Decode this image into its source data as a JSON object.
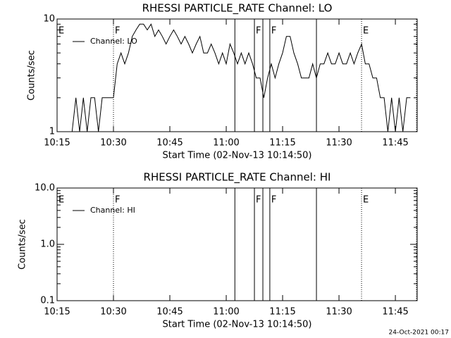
{
  "chart_data": [
    {
      "type": "line",
      "title": "RHESSI PARTICLE_RATE Channel: LO",
      "xlabel": "Start Time (02-Nov-13 10:14:50)",
      "ylabel": "Counts/sec",
      "log_y": true,
      "ylim": [
        1,
        10
      ],
      "yticks": [
        1,
        10
      ],
      "yminorticks": [
        2,
        3,
        4,
        5,
        6,
        7,
        8,
        9
      ],
      "xlim": [
        615,
        710.8
      ],
      "xticks": [
        {
          "value": 615,
          "label": "10:15"
        },
        {
          "value": 630,
          "label": "10:30"
        },
        {
          "value": 645,
          "label": "10:45"
        },
        {
          "value": 660,
          "label": "11:00"
        },
        {
          "value": 675,
          "label": "11:15"
        },
        {
          "value": 690,
          "label": "11:30"
        },
        {
          "value": 705,
          "label": "11:45"
        }
      ],
      "flags": [
        {
          "x": 615,
          "label": "E",
          "style": "dotted"
        },
        {
          "x": 630,
          "label": "F",
          "style": "dotted"
        },
        {
          "x": 662.3,
          "style": "solid"
        },
        {
          "x": 667.5,
          "label": "F",
          "style": "solid"
        },
        {
          "x": 669.75,
          "style": "solid"
        },
        {
          "x": 671.6,
          "label": "F",
          "style": "solid"
        },
        {
          "x": 684,
          "style": "solid"
        },
        {
          "x": 696,
          "label": "E",
          "style": "dotted"
        },
        {
          "x": 710.6,
          "style": "dotted"
        }
      ],
      "series": [
        {
          "name": "Channel: LO",
          "color": "#000000",
          "x": [
            619,
            620,
            621,
            622,
            623,
            624,
            625,
            626,
            627,
            628,
            629,
            630,
            631,
            632,
            633,
            634,
            635,
            636,
            637,
            638,
            639,
            640,
            641,
            642,
            643,
            644,
            645,
            646,
            647,
            648,
            649,
            650,
            651,
            652,
            653,
            654,
            655,
            656,
            657,
            658,
            659,
            660,
            661,
            662,
            663,
            664,
            665,
            666,
            667,
            668,
            669,
            670,
            671,
            672,
            673,
            674,
            675,
            676,
            677,
            678,
            679,
            680,
            681,
            682,
            683,
            684,
            685,
            686,
            687,
            688,
            689,
            690,
            691,
            692,
            693,
            694,
            695,
            696,
            697,
            698,
            699,
            700,
            701,
            702,
            703,
            704,
            705,
            706,
            707,
            708,
            709
          ],
          "values": [
            1,
            2,
            1,
            2,
            1,
            2,
            2,
            1,
            2,
            2,
            2,
            2,
            4,
            5,
            4,
            5,
            7,
            8,
            9,
            9,
            8,
            9,
            7,
            8,
            7,
            6,
            7,
            8,
            7,
            6,
            7,
            6,
            5,
            6,
            7,
            5,
            5,
            6,
            5,
            4,
            5,
            4,
            6,
            5,
            4,
            5,
            4,
            5,
            4,
            3,
            3,
            2,
            3,
            4,
            3,
            4,
            5,
            7,
            7,
            5,
            4,
            3,
            3,
            3,
            4,
            3,
            4,
            4,
            5,
            4,
            4,
            5,
            4,
            4,
            5,
            4,
            5,
            6,
            4,
            4,
            3,
            3,
            2,
            2,
            1,
            2,
            1,
            2,
            1,
            2,
            2
          ]
        }
      ]
    },
    {
      "type": "line",
      "title": "RHESSI PARTICLE_RATE Channel: HI",
      "xlabel": "Start Time (02-Nov-13 10:14:50)",
      "ylabel": "Counts/sec",
      "log_y": true,
      "ylim": [
        0.1,
        10
      ],
      "yticks": [
        {
          "value": 0.1,
          "label": "0.1"
        },
        {
          "value": 1,
          "label": "1.0"
        },
        {
          "value": 10,
          "label": "10.0"
        }
      ],
      "yminorticks": [
        0.2,
        0.3,
        0.4,
        0.5,
        0.6,
        0.7,
        0.8,
        0.9,
        2,
        3,
        4,
        5,
        6,
        7,
        8,
        9
      ],
      "xlim": [
        615,
        710.8
      ],
      "xticks": [
        {
          "value": 615,
          "label": "10:15"
        },
        {
          "value": 630,
          "label": "10:30"
        },
        {
          "value": 645,
          "label": "10:45"
        },
        {
          "value": 660,
          "label": "11:00"
        },
        {
          "value": 675,
          "label": "11:15"
        },
        {
          "value": 690,
          "label": "11:30"
        },
        {
          "value": 705,
          "label": "11:45"
        }
      ],
      "flags": [
        {
          "x": 615,
          "label": "E",
          "style": "dotted"
        },
        {
          "x": 630,
          "label": "F",
          "style": "dotted"
        },
        {
          "x": 662.3,
          "style": "solid"
        },
        {
          "x": 667.5,
          "label": "F",
          "style": "solid"
        },
        {
          "x": 669.75,
          "style": "solid"
        },
        {
          "x": 671.6,
          "label": "F",
          "style": "solid"
        },
        {
          "x": 684,
          "style": "solid"
        },
        {
          "x": 696,
          "label": "E",
          "style": "dotted"
        },
        {
          "x": 710.6,
          "style": "dotted"
        }
      ],
      "series": [
        {
          "name": "Channel: HI",
          "color": "#000000",
          "x": [],
          "values": []
        }
      ]
    }
  ],
  "footer": "24-Oct-2021 00:17"
}
